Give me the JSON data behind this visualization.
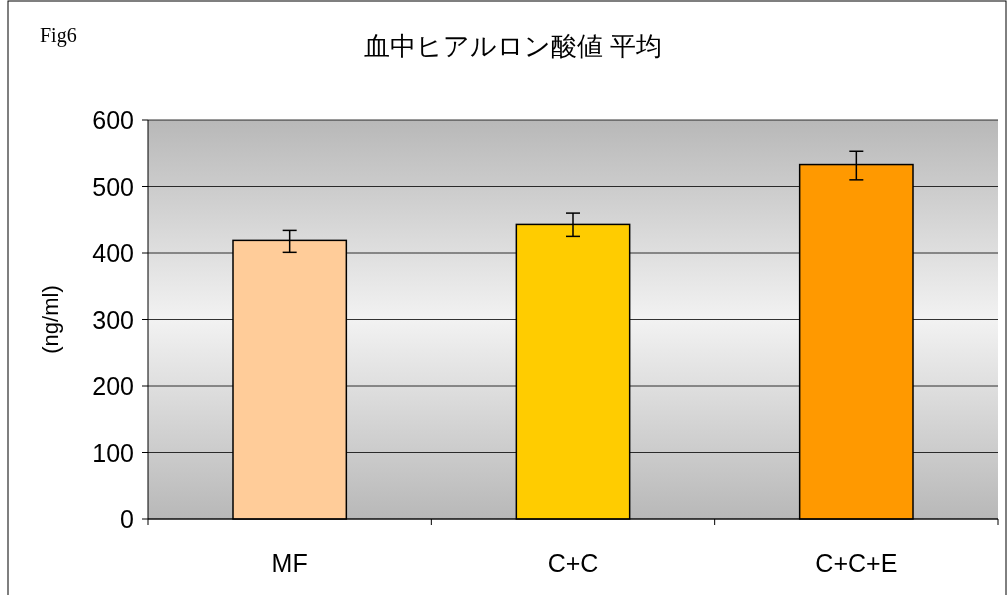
{
  "chart_data": {
    "type": "bar",
    "title": "血中ヒアルロン酸値 平均",
    "ylabel": "(ng/ml)",
    "annotations": [
      "Fig6"
    ],
    "categories": [
      "MF",
      "C+C",
      "C+C+E"
    ],
    "values": [
      419,
      443,
      533
    ],
    "colors": [
      "#ffcc99",
      "#ffcc00",
      "#ff9900"
    ],
    "errors": [
      [
        401,
        434
      ],
      [
        425,
        460
      ],
      [
        510,
        553
      ]
    ],
    "ylim": [
      0,
      600
    ],
    "yticks": [
      0,
      100,
      200,
      300,
      400,
      500,
      600
    ],
    "grid": "y"
  }
}
